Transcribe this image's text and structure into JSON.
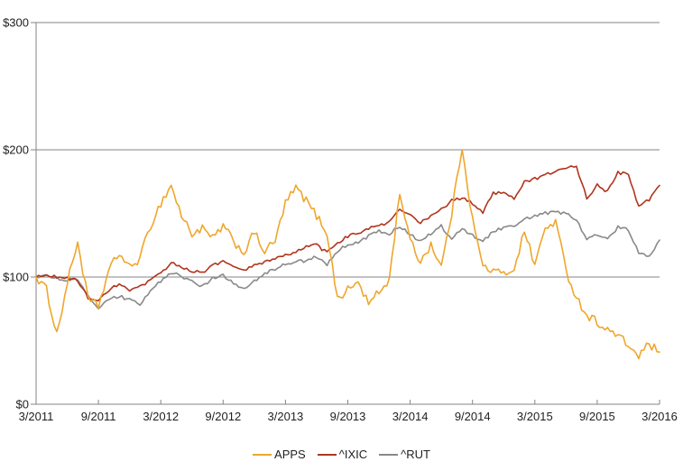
{
  "page": {
    "background_color": "#FFFFFF"
  },
  "chart_data": {
    "type": "line",
    "title": "",
    "xlabel": "",
    "ylabel": "",
    "ylim": [
      0,
      300
    ],
    "grid": "horizontal",
    "legend_position": "bottom-center",
    "axis_color": "#858585",
    "text_color": "#1F1F1F",
    "y_ticks": [
      {
        "value": 0,
        "label": "$0"
      },
      {
        "value": 100,
        "label": "$100"
      },
      {
        "value": 200,
        "label": "$200"
      },
      {
        "value": 300,
        "label": "$300"
      }
    ],
    "x_tick_labels": [
      "3/2011",
      "9/2011",
      "3/2012",
      "9/2012",
      "3/2013",
      "9/2013",
      "3/2014",
      "9/2014",
      "3/2015",
      "9/2015",
      "3/2016"
    ],
    "sampling": "monthly values, 3/2011 through 3/2016, indexed value with 3/2011 = $100",
    "series": [
      {
        "name": "APPS",
        "color": "#EFA62C",
        "values": [
          100,
          90,
          55,
          95,
          128,
          82,
          77,
          105,
          119,
          107,
          115,
          140,
          158,
          172,
          148,
          134,
          138,
          130,
          140,
          128,
          119,
          135,
          120,
          128,
          158,
          170,
          160,
          148,
          135,
          83,
          90,
          96,
          79,
          88,
          98,
          167,
          128,
          112,
          126,
          108,
          150,
          203,
          145,
          108,
          105,
          102,
          107,
          136,
          110,
          138,
          144,
          105,
          84,
          70,
          65,
          58,
          54,
          46,
          38,
          47,
          41
        ]
      },
      {
        "name": "^IXIC",
        "color": "#B0351D",
        "values": [
          100,
          101,
          100,
          99,
          97,
          84,
          81,
          89,
          95,
          89,
          92,
          97,
          103,
          111,
          108,
          105,
          103,
          110,
          112,
          108,
          105,
          109,
          112,
          114,
          117,
          120,
          124,
          125,
          119,
          127,
          132,
          135,
          138,
          140,
          143,
          153,
          148,
          143,
          148,
          153,
          160,
          162,
          158,
          151,
          166,
          167,
          162,
          175,
          177,
          180,
          183,
          186,
          187,
          162,
          172,
          167,
          182,
          181,
          155,
          161,
          172
        ]
      },
      {
        "name": "^RUT",
        "color": "#898989",
        "values": [
          100,
          101,
          99,
          98,
          97,
          85,
          75,
          82,
          85,
          82,
          79,
          88,
          97,
          103,
          101,
          96,
          93,
          99,
          101,
          95,
          91,
          97,
          103,
          106,
          110,
          112,
          113,
          116,
          110,
          120,
          126,
          127,
          132,
          136,
          134,
          140,
          134,
          128,
          134,
          140,
          130,
          138,
          133,
          128,
          136,
          139,
          141,
          145,
          148,
          150,
          151,
          150,
          145,
          130,
          134,
          131,
          139,
          137,
          119,
          116,
          129
        ]
      }
    ]
  }
}
